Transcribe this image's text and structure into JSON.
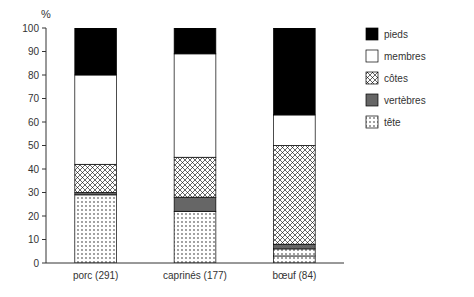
{
  "chart_data": {
    "type": "bar",
    "stacked": true,
    "y_label": "%",
    "categories": [
      "porc (291)",
      "caprinés (177)",
      "bœuf (84)"
    ],
    "series": [
      {
        "name": "tête",
        "color": "#ffffff",
        "values": [
          0,
          0,
          3
        ]
      },
      {
        "color": "#ffffff",
        "values": [
          29,
          22,
          3
        ]
      },
      {
        "name": "vertèbres",
        "color": "#666666",
        "values": [
          1,
          6,
          2
        ]
      },
      {
        "name": "côtes",
        "color": "#ffffff",
        "values": [
          12,
          17,
          42
        ]
      },
      {
        "name": "membres",
        "color": "#ffffff",
        "values": [
          38,
          44,
          13
        ]
      },
      {
        "name": "pieds",
        "color": "#000000",
        "values": [
          20,
          11,
          37
        ]
      }
    ],
    "ylim": [
      0,
      100
    ],
    "yticks": [
      0,
      10,
      20,
      30,
      40,
      50,
      60,
      70,
      80,
      90,
      100
    ],
    "grid": false,
    "legend": "right"
  }
}
